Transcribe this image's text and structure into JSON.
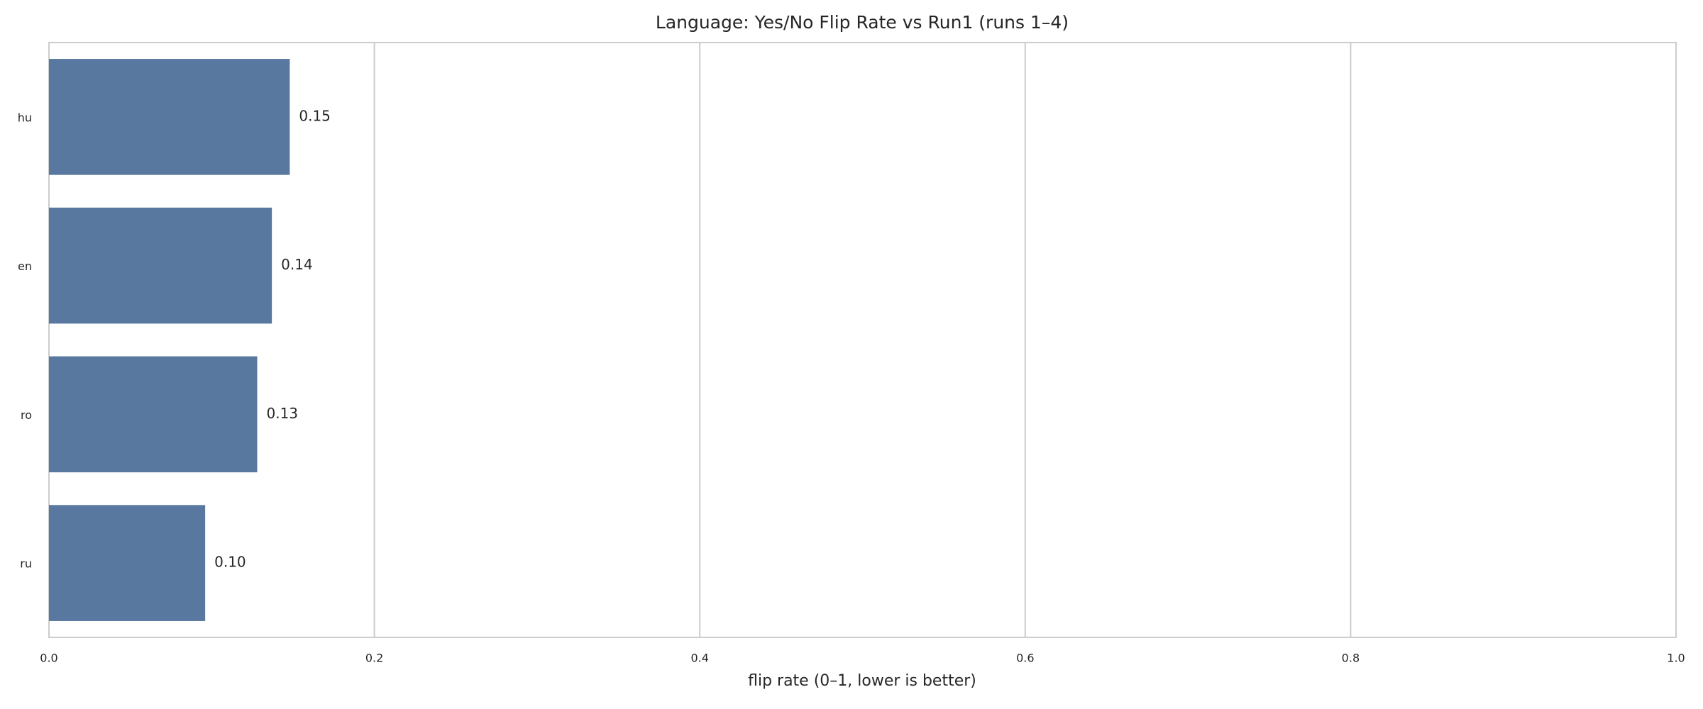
{
  "chart_data": {
    "type": "barh",
    "title": "Language: Yes/No Flip Rate vs Run1 (runs 1–4)",
    "xlabel": "flip rate (0–1, lower is better)",
    "categories": [
      "hu",
      "en",
      "ro",
      "ru"
    ],
    "values": [
      0.148,
      0.137,
      0.128,
      0.096
    ],
    "value_labels": [
      "0.15",
      "0.14",
      "0.13",
      "0.10"
    ],
    "color": "#5878a0",
    "xlim": [
      0,
      1
    ],
    "xticks": [
      {
        "value": 0,
        "label": "0.0"
      },
      0.2,
      0.4,
      0.6,
      0.8,
      {
        "value": 1,
        "label": "1.0"
      }
    ],
    "grid": true
  }
}
